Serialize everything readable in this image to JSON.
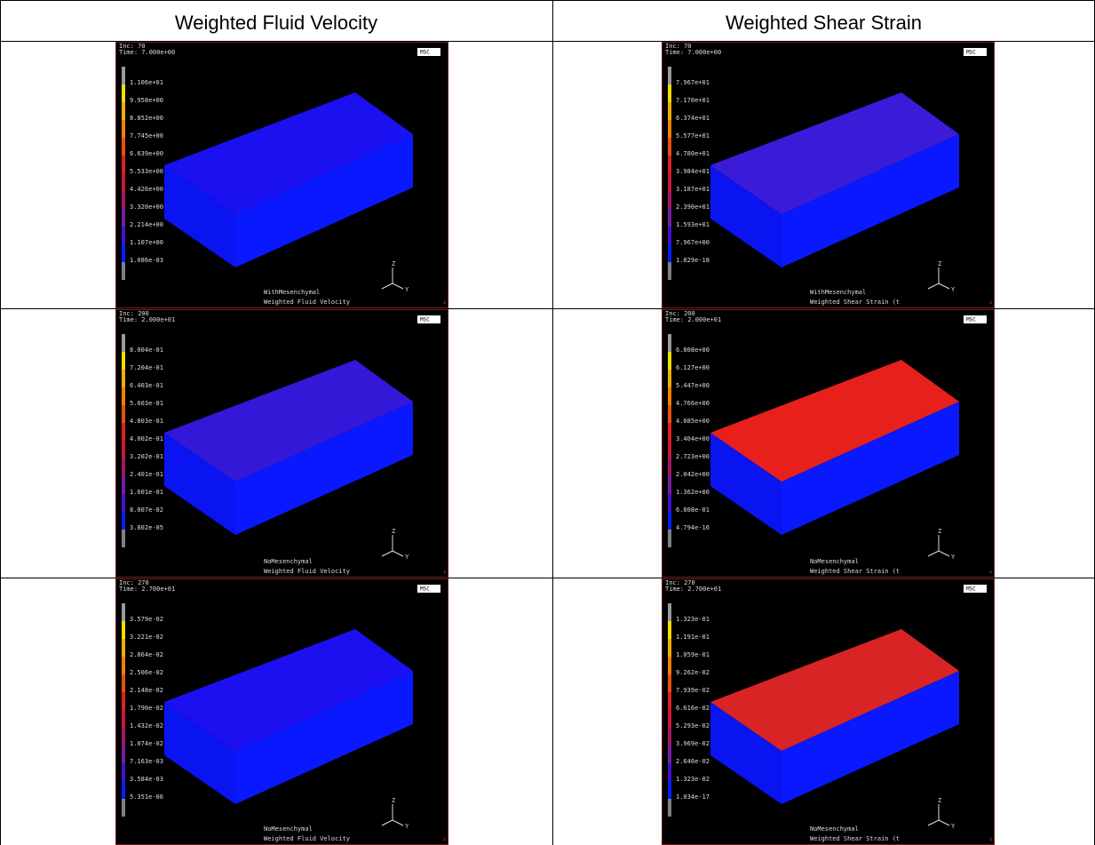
{
  "header": [
    "Weighted Fluid Velocity",
    "Weighted Shear Strain"
  ],
  "logo": "MSC",
  "axes": [
    "Z",
    "Y"
  ],
  "corner": "4",
  "rows": [
    [
      {
        "inc": "Inc:  70",
        "time": "Time:  7.000e+00",
        "legend": [
          "1.106e+01",
          "9.958e+00",
          "8.852e+00",
          "7.745e+00",
          "6.639e+00",
          "5.533e+00",
          "4.426e+00",
          "3.320e+00",
          "2.214e+00",
          "1.107e+00",
          "1.086e-03"
        ],
        "model": "WithMesenchymal",
        "result": "Weighted Fluid Velocity",
        "top_color": "#1a10f0"
      },
      {
        "inc": "Inc:  70",
        "time": "Time:  7.000e+00",
        "legend": [
          "7.967e+01",
          "7.170e+01",
          "6.374e+01",
          "5.577e+01",
          "4.780e+01",
          "3.984e+01",
          "3.187e+01",
          "2.390e+01",
          "1.593e+01",
          "7.967e+00",
          "1.829e-18"
        ],
        "model": "WithMesenchymal",
        "result": "Weighted Shear Strain (t",
        "top_color": "#3a1cd8"
      }
    ],
    [
      {
        "inc": "Inc:  200",
        "time": "Time:  2.000e+01",
        "legend": [
          "8.004e-01",
          "7.204e-01",
          "6.403e-01",
          "5.603e-01",
          "4.803e-01",
          "4.002e-01",
          "3.202e-01",
          "2.401e-01",
          "1.601e-01",
          "8.007e-02",
          "3.802e-05"
        ],
        "model": "NoMesenchymal",
        "result": "Weighted Fluid Velocity",
        "top_color": "#3418d8"
      },
      {
        "inc": "Inc:  200",
        "time": "Time:  2.000e+01",
        "legend": [
          "6.808e+00",
          "6.127e+00",
          "5.447e+00",
          "4.766e+00",
          "4.085e+00",
          "3.404e+00",
          "2.723e+00",
          "2.042e+00",
          "1.362e+00",
          "6.808e-01",
          "4.794e-16"
        ],
        "model": "NoMesenchymal",
        "result": "Weighted Shear Strain (t",
        "top_color": "#e8201c"
      }
    ],
    [
      {
        "inc": "Inc:  270",
        "time": "Time:  2.700e+01",
        "legend": [
          "3.579e-02",
          "3.221e-02",
          "2.864e-02",
          "2.506e-02",
          "2.148e-02",
          "1.790e-02",
          "1.432e-02",
          "1.074e-02",
          "7.163e-03",
          "3.584e-03",
          "5.351e-06"
        ],
        "model": "NoMesenchymal",
        "result": "Weighted Fluid Velocity",
        "top_color": "#1c0ff0"
      },
      {
        "inc": "Inc:  270",
        "time": "Time:  2.700e+01",
        "legend": [
          "1.323e-01",
          "1.191e-01",
          "1.059e-01",
          "9.262e-02",
          "7.939e-02",
          "6.616e-02",
          "5.293e-02",
          "3.969e-02",
          "2.646e-02",
          "1.323e-02",
          "1.034e-17"
        ],
        "model": "NoMesenchymal",
        "result": "Weighted Shear Strain (t",
        "top_color": "#d82424"
      }
    ]
  ]
}
